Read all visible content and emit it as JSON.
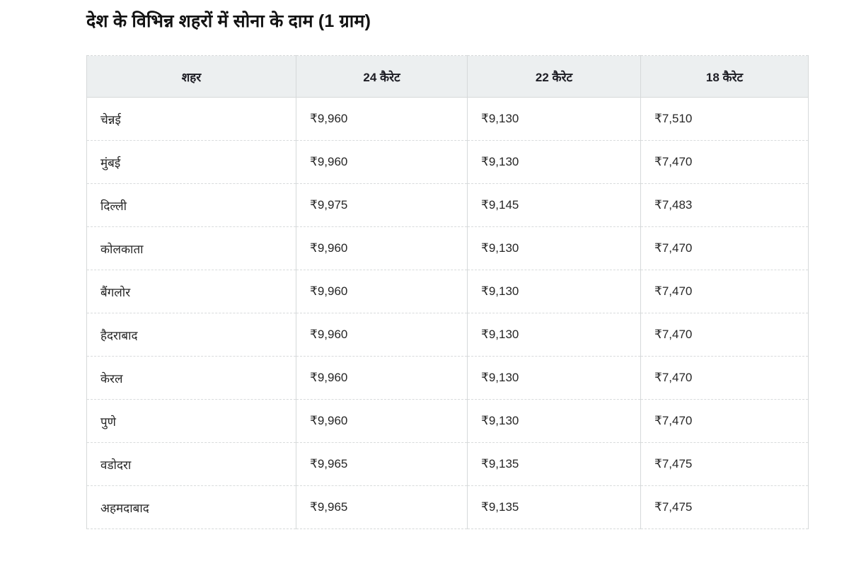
{
  "page": {
    "title": "देश के विभिन्न शहरों में सोना के दाम (1 ग्राम)"
  },
  "table": {
    "headers": [
      "शहर",
      "24 कैरेट",
      "22 कैरेट",
      "18 कैरेट"
    ],
    "rows": [
      [
        "चेन्नई",
        "₹9,960",
        "₹9,130",
        "₹7,510"
      ],
      [
        "मुंबई",
        "₹9,960",
        "₹9,130",
        "₹7,470"
      ],
      [
        "दिल्ली",
        "₹9,975",
        "₹9,145",
        "₹7,483"
      ],
      [
        "कोलकाता",
        "₹9,960",
        "₹9,130",
        "₹7,470"
      ],
      [
        "बैंगलोर",
        "₹9,960",
        "₹9,130",
        "₹7,470"
      ],
      [
        "हैदराबाद",
        "₹9,960",
        "₹9,130",
        "₹7,470"
      ],
      [
        "केरल",
        "₹9,960",
        "₹9,130",
        "₹7,470"
      ],
      [
        "पुणे",
        "₹9,960",
        "₹9,130",
        "₹7,470"
      ],
      [
        "वडोदरा",
        "₹9,965",
        "₹9,135",
        "₹7,475"
      ],
      [
        "अहमदाबाद",
        "₹9,965",
        "₹9,135",
        "₹7,475"
      ]
    ]
  },
  "colors": {
    "header_background": "#eceff0",
    "border": "#d6d9da",
    "title_text": "#121212",
    "cell_text": "#262626"
  }
}
